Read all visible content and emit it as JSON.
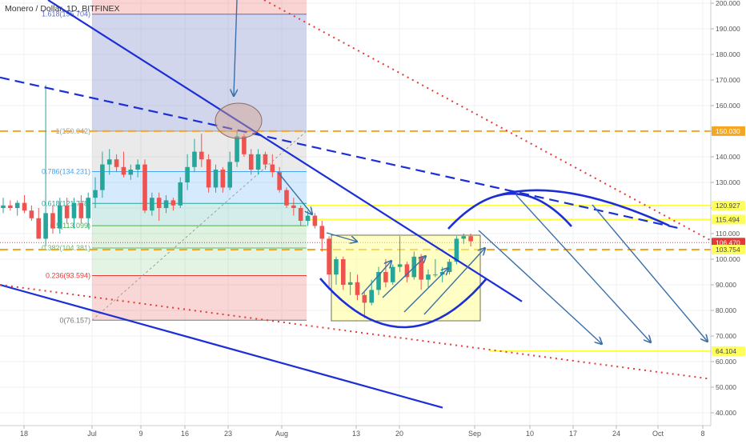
{
  "header": {
    "title": "Monero / Dollar, 1D, BITFINEX"
  },
  "chart_data": {
    "type": "candlestick",
    "y_axis": {
      "ticks": [
        "200.000",
        "190.000",
        "180.000",
        "170.000",
        "160.000",
        "150.000",
        "140.000",
        "130.000",
        "120.000",
        "110.000",
        "100.000",
        "90.000",
        "80.000",
        "70.000",
        "60.000",
        "50.000",
        "40.000"
      ],
      "tick_values": [
        200,
        190,
        180,
        170,
        160,
        150,
        140,
        130,
        120,
        110,
        100,
        90,
        80,
        70,
        60,
        50,
        40
      ],
      "range": [
        37,
        201
      ]
    },
    "x_axis": {
      "ticks": [
        "18",
        "Jul",
        "9",
        "16",
        "23",
        "Aug",
        "13",
        "20",
        "Sep",
        "10",
        "17",
        "24",
        "Oct",
        "8"
      ]
    },
    "price_tags": [
      {
        "label": "150.030",
        "value": 150.03,
        "color": "#f5a623",
        "text_color": "#ffffff"
      },
      {
        "label": "120.927",
        "value": 120.927,
        "color": "#ffff5a",
        "text_color": "#444444"
      },
      {
        "label": "115.494",
        "value": 115.494,
        "color": "#ffff5a",
        "text_color": "#444444"
      },
      {
        "label": "106.470",
        "value": 106.47,
        "color": "#e53935",
        "text_color": "#ffffff"
      },
      {
        "label": "103.754",
        "value": 103.754,
        "color": "#ffff5a",
        "text_color": "#444444"
      },
      {
        "label": "64.104",
        "value": 64.104,
        "color": "#ffff5a",
        "text_color": "#444444"
      }
    ],
    "fib_levels": [
      {
        "label": "1.618(195.704)",
        "value": 195.704,
        "color": "#5c6bc0"
      },
      {
        "label": "1(150.042)",
        "value": 150.042,
        "color": "#9e9e9e"
      },
      {
        "label": "0.786(134.231)",
        "value": 134.231,
        "color": "#42a5f5"
      },
      {
        "label": "0.618(121.778)",
        "value": 121.778,
        "color": "#26a69a"
      },
      {
        "label": "0.5(113.099)",
        "value": 113.099,
        "color": "#4caf50"
      },
      {
        "label": "0.382(104.381)",
        "value": 104.381,
        "color": "#66bb6a"
      },
      {
        "label": "0.236(93.594)",
        "value": 93.594,
        "color": "#e53935"
      },
      {
        "label": "0(76.157)",
        "value": 76.157,
        "color": "#787878"
      }
    ],
    "candles": [
      {
        "o": 120,
        "h": 124,
        "l": 118,
        "c": 121
      },
      {
        "o": 121,
        "h": 123,
        "l": 119,
        "c": 120
      },
      {
        "o": 120,
        "h": 123,
        "l": 117,
        "c": 122
      },
      {
        "o": 122,
        "h": 125,
        "l": 118,
        "c": 119
      },
      {
        "o": 119,
        "h": 121,
        "l": 115,
        "c": 116
      },
      {
        "o": 116,
        "h": 120,
        "l": 108,
        "c": 108
      },
      {
        "o": 108,
        "h": 168,
        "l": 105,
        "c": 118
      },
      {
        "o": 118,
        "h": 121,
        "l": 110,
        "c": 112
      },
      {
        "o": 112,
        "h": 124,
        "l": 110,
        "c": 121
      },
      {
        "o": 121,
        "h": 124,
        "l": 114,
        "c": 116
      },
      {
        "o": 116,
        "h": 124,
        "l": 112,
        "c": 122
      },
      {
        "o": 122,
        "h": 125,
        "l": 114,
        "c": 116
      },
      {
        "o": 116,
        "h": 126,
        "l": 112,
        "c": 124
      },
      {
        "o": 124,
        "h": 132,
        "l": 120,
        "c": 127
      },
      {
        "o": 127,
        "h": 142,
        "l": 124,
        "c": 137
      },
      {
        "o": 137,
        "h": 143,
        "l": 133,
        "c": 139
      },
      {
        "o": 139,
        "h": 141,
        "l": 134,
        "c": 136
      },
      {
        "o": 136,
        "h": 142,
        "l": 132,
        "c": 133
      },
      {
        "o": 133,
        "h": 137,
        "l": 131,
        "c": 135
      },
      {
        "o": 135,
        "h": 139,
        "l": 132,
        "c": 137
      },
      {
        "o": 137,
        "h": 139,
        "l": 118,
        "c": 119
      },
      {
        "o": 119,
        "h": 126,
        "l": 117,
        "c": 124
      },
      {
        "o": 124,
        "h": 126,
        "l": 115,
        "c": 120
      },
      {
        "o": 120,
        "h": 125,
        "l": 118,
        "c": 123
      },
      {
        "o": 123,
        "h": 124,
        "l": 119,
        "c": 121
      },
      {
        "o": 121,
        "h": 132,
        "l": 120,
        "c": 130
      },
      {
        "o": 130,
        "h": 141,
        "l": 127,
        "c": 136
      },
      {
        "o": 136,
        "h": 147,
        "l": 134,
        "c": 142
      },
      {
        "o": 142,
        "h": 149,
        "l": 136,
        "c": 139
      },
      {
        "o": 139,
        "h": 141,
        "l": 126,
        "c": 128
      },
      {
        "o": 128,
        "h": 137,
        "l": 126,
        "c": 135
      },
      {
        "o": 135,
        "h": 136,
        "l": 126,
        "c": 128
      },
      {
        "o": 128,
        "h": 142,
        "l": 127,
        "c": 138
      },
      {
        "o": 138,
        "h": 150,
        "l": 136,
        "c": 148
      },
      {
        "o": 148,
        "h": 149,
        "l": 140,
        "c": 141
      },
      {
        "o": 141,
        "h": 143,
        "l": 133,
        "c": 135
      },
      {
        "o": 135,
        "h": 143,
        "l": 133,
        "c": 141
      },
      {
        "o": 141,
        "h": 142,
        "l": 135,
        "c": 137
      },
      {
        "o": 137,
        "h": 141,
        "l": 132,
        "c": 134
      },
      {
        "o": 134,
        "h": 136,
        "l": 126,
        "c": 127
      },
      {
        "o": 127,
        "h": 128,
        "l": 120,
        "c": 121
      },
      {
        "o": 121,
        "h": 124,
        "l": 117,
        "c": 120
      },
      {
        "o": 120,
        "h": 121,
        "l": 113,
        "c": 115
      },
      {
        "o": 115,
        "h": 119,
        "l": 113,
        "c": 117
      },
      {
        "o": 117,
        "h": 118,
        "l": 112,
        "c": 113
      },
      {
        "o": 113,
        "h": 115,
        "l": 103,
        "c": 108
      },
      {
        "o": 108,
        "h": 109,
        "l": 88,
        "c": 94
      },
      {
        "o": 94,
        "h": 101,
        "l": 90,
        "c": 100
      },
      {
        "o": 100,
        "h": 101,
        "l": 88,
        "c": 90
      },
      {
        "o": 90,
        "h": 95,
        "l": 86,
        "c": 91
      },
      {
        "o": 91,
        "h": 94,
        "l": 84,
        "c": 86
      },
      {
        "o": 86,
        "h": 87,
        "l": 77,
        "c": 83
      },
      {
        "o": 83,
        "h": 92,
        "l": 82,
        "c": 88
      },
      {
        "o": 88,
        "h": 97,
        "l": 86,
        "c": 95
      },
      {
        "o": 95,
        "h": 100,
        "l": 89,
        "c": 91
      },
      {
        "o": 91,
        "h": 98,
        "l": 90,
        "c": 97
      },
      {
        "o": 97,
        "h": 109,
        "l": 95,
        "c": 98
      },
      {
        "o": 98,
        "h": 99,
        "l": 91,
        "c": 93
      },
      {
        "o": 93,
        "h": 103,
        "l": 92,
        "c": 101
      },
      {
        "o": 101,
        "h": 102,
        "l": 88,
        "c": 92
      },
      {
        "o": 92,
        "h": 96,
        "l": 89,
        "c": 94
      },
      {
        "o": 94,
        "h": 100,
        "l": 93,
        "c": 94
      },
      {
        "o": 94,
        "h": 97,
        "l": 91,
        "c": 95
      },
      {
        "o": 95,
        "h": 100,
        "l": 94,
        "c": 99
      },
      {
        "o": 99,
        "h": 109,
        "l": 98,
        "c": 108
      },
      {
        "o": 108,
        "h": 110,
        "l": 106,
        "c": 109
      },
      {
        "o": 109,
        "h": 110,
        "l": 105,
        "c": 107
      }
    ]
  }
}
